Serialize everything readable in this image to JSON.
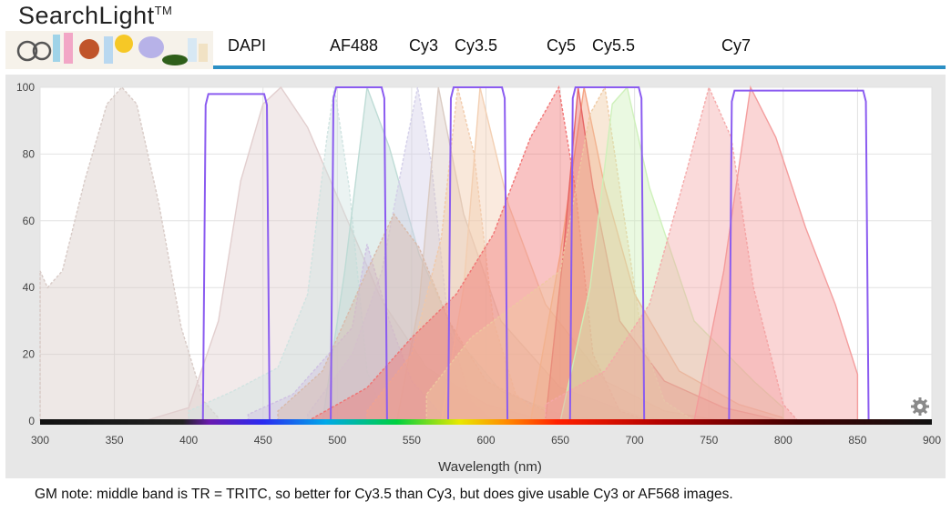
{
  "header": {
    "brand": "SearchLight",
    "trademark": "TM",
    "fluorophores": [
      "DAPI",
      "AF488",
      "Cy3",
      "Cy3.5",
      "Cy5",
      "Cy5.5",
      "Cy7"
    ]
  },
  "chart_data": {
    "type": "area",
    "xlabel": "Wavelength (nm)",
    "ylabel": "",
    "xlim": [
      300,
      900
    ],
    "ylim": [
      0,
      100
    ],
    "x_ticks": [
      300,
      350,
      400,
      450,
      500,
      550,
      600,
      650,
      700,
      750,
      800,
      850,
      900
    ],
    "y_ticks": [
      0,
      20,
      40,
      60,
      80,
      100
    ],
    "grid": true,
    "filters": [
      {
        "range": [
          412,
          452
        ],
        "transmission": 98
      },
      {
        "range": [
          498,
          531
        ],
        "transmission": 100
      },
      {
        "range": [
          577,
          612
        ],
        "transmission": 100
      },
      {
        "range": [
          659,
          704
        ],
        "transmission": 100
      },
      {
        "range": [
          766,
          855
        ],
        "transmission": 99
      }
    ],
    "spectra": [
      {
        "kind": "excitation",
        "color": "#d6c8c4",
        "points": [
          [
            300,
            45
          ],
          [
            305,
            40
          ],
          [
            315,
            45
          ],
          [
            330,
            72
          ],
          [
            345,
            95
          ],
          [
            355,
            100
          ],
          [
            365,
            95
          ],
          [
            380,
            65
          ],
          [
            395,
            28
          ],
          [
            410,
            6
          ],
          [
            420,
            1
          ]
        ]
      },
      {
        "kind": "emission",
        "color": "#e0cccc",
        "points": [
          [
            370,
            0
          ],
          [
            400,
            4
          ],
          [
            420,
            30
          ],
          [
            435,
            72
          ],
          [
            450,
            95
          ],
          [
            462,
            100
          ],
          [
            480,
            88
          ],
          [
            505,
            62
          ],
          [
            530,
            36
          ],
          [
            560,
            16
          ],
          [
            600,
            5
          ],
          [
            640,
            0
          ]
        ]
      },
      {
        "kind": "excitation",
        "color": "#cfe3e0",
        "points": [
          [
            400,
            3
          ],
          [
            430,
            9
          ],
          [
            460,
            16
          ],
          [
            480,
            38
          ],
          [
            493,
            85
          ],
          [
            498,
            100
          ],
          [
            508,
            70
          ],
          [
            520,
            15
          ],
          [
            530,
            3
          ],
          [
            540,
            0
          ]
        ]
      },
      {
        "kind": "emission",
        "color": "#bcdad4",
        "points": [
          [
            490,
            0
          ],
          [
            505,
            45
          ],
          [
            520,
            100
          ],
          [
            535,
            82
          ],
          [
            555,
            50
          ],
          [
            580,
            25
          ],
          [
            610,
            9
          ],
          [
            650,
            2
          ],
          [
            680,
            0
          ]
        ]
      },
      {
        "kind": "excitation",
        "color": "#d2cde8",
        "points": [
          [
            480,
            2
          ],
          [
            510,
            20
          ],
          [
            530,
            45
          ],
          [
            545,
            80
          ],
          [
            554,
            100
          ],
          [
            563,
            78
          ],
          [
            575,
            28
          ],
          [
            590,
            6
          ],
          [
            605,
            0
          ]
        ]
      },
      {
        "kind": "emission",
        "color": "#d8c8c0",
        "points": [
          [
            540,
            0
          ],
          [
            555,
            35
          ],
          [
            568,
            100
          ],
          [
            585,
            62
          ],
          [
            610,
            30
          ],
          [
            650,
            10
          ],
          [
            700,
            2
          ],
          [
            720,
            0
          ]
        ]
      },
      {
        "kind": "excitation",
        "color": "#cdbfe2",
        "points": [
          [
            440,
            2
          ],
          [
            470,
            8
          ],
          [
            490,
            18
          ],
          [
            510,
            28
          ],
          [
            520,
            53
          ],
          [
            535,
            30
          ],
          [
            550,
            12
          ],
          [
            570,
            2
          ]
        ]
      },
      {
        "kind": "excitation",
        "color": "#d8b8a8",
        "points": [
          [
            460,
            3
          ],
          [
            490,
            15
          ],
          [
            520,
            45
          ],
          [
            538,
            62
          ],
          [
            555,
            52
          ],
          [
            575,
            30
          ],
          [
            600,
            12
          ],
          [
            640,
            3
          ],
          [
            680,
            0
          ]
        ]
      },
      {
        "kind": "excitation",
        "color": "#f0c8a8",
        "points": [
          [
            520,
            3
          ],
          [
            550,
            20
          ],
          [
            570,
            55
          ],
          [
            581,
            100
          ],
          [
            592,
            80
          ],
          [
            605,
            30
          ],
          [
            620,
            8
          ],
          [
            640,
            0
          ]
        ]
      },
      {
        "kind": "emission",
        "color": "#f2cdb0",
        "points": [
          [
            570,
            0
          ],
          [
            585,
            40
          ],
          [
            596,
            100
          ],
          [
            615,
            65
          ],
          [
            640,
            35
          ],
          [
            680,
            12
          ],
          [
            720,
            3
          ],
          [
            760,
            0
          ]
        ]
      },
      {
        "kind": "excitation",
        "color": "#f07070",
        "points": [
          [
            480,
            0
          ],
          [
            520,
            10
          ],
          [
            550,
            25
          ],
          [
            580,
            38
          ],
          [
            605,
            56
          ],
          [
            630,
            85
          ],
          [
            649,
            100
          ],
          [
            660,
            70
          ],
          [
            672,
            20
          ],
          [
            690,
            3
          ],
          [
            710,
            0
          ]
        ]
      },
      {
        "kind": "emission",
        "color": "#f4a080",
        "points": [
          [
            630,
            0
          ],
          [
            650,
            50
          ],
          [
            666,
            100
          ],
          [
            680,
            70
          ],
          [
            700,
            38
          ],
          [
            730,
            15
          ],
          [
            770,
            5
          ],
          [
            800,
            1
          ]
        ]
      },
      {
        "kind": "emission",
        "color": "#e56060",
        "points": [
          [
            640,
            0
          ],
          [
            652,
            50
          ],
          [
            662,
            100
          ],
          [
            672,
            70
          ],
          [
            690,
            30
          ],
          [
            720,
            12
          ],
          [
            760,
            4
          ],
          [
            800,
            0
          ]
        ]
      },
      {
        "kind": "excitation",
        "color": "#eec8a0",
        "points": [
          [
            560,
            8
          ],
          [
            590,
            25
          ],
          [
            620,
            35
          ],
          [
            650,
            45
          ],
          [
            670,
            92
          ],
          [
            680,
            100
          ],
          [
            690,
            70
          ],
          [
            705,
            25
          ],
          [
            720,
            6
          ],
          [
            740,
            0
          ]
        ]
      },
      {
        "kind": "emission",
        "color": "#ccf0b8",
        "points": [
          [
            650,
            0
          ],
          [
            670,
            40
          ],
          [
            685,
            95
          ],
          [
            695,
            100
          ],
          [
            710,
            70
          ],
          [
            740,
            30
          ],
          [
            780,
            12
          ],
          [
            800,
            4
          ]
        ]
      },
      {
        "kind": "excitation",
        "color": "#f4a8a8",
        "points": [
          [
            640,
            5
          ],
          [
            680,
            15
          ],
          [
            710,
            35
          ],
          [
            735,
            75
          ],
          [
            750,
            100
          ],
          [
            765,
            85
          ],
          [
            780,
            40
          ],
          [
            800,
            5
          ],
          [
            810,
            0
          ]
        ]
      },
      {
        "kind": "emission",
        "color": "#f39a9a",
        "points": [
          [
            740,
            0
          ],
          [
            760,
            45
          ],
          [
            778,
            100
          ],
          [
            795,
            85
          ],
          [
            815,
            58
          ],
          [
            835,
            35
          ],
          [
            850,
            14
          ],
          [
            850,
            0
          ]
        ]
      }
    ]
  },
  "note": "GM note: middle band is TR = TRITC, so better for Cy3.5 than Cy3, but does give usable Cy3 or AF568 images."
}
